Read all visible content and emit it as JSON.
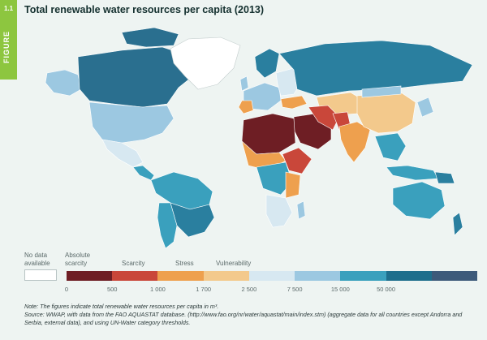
{
  "figure": {
    "number": "1.1",
    "label": "FIGURE"
  },
  "title": "Total renewable water resources per capita (2013)",
  "legend": {
    "no_data": "No data available",
    "categories": [
      {
        "label": "Absolute scarcity"
      },
      {
        "label": "Scarcity"
      },
      {
        "label": "Stress"
      },
      {
        "label": "Vulnerability"
      }
    ],
    "ticks": [
      "0",
      "500",
      "1 000",
      "1 700",
      "2 500",
      "7 500",
      "15 000",
      "50 000"
    ],
    "colors": [
      "#6e1e24",
      "#c9473a",
      "#eea04e",
      "#f3c98c",
      "#d7e8f1",
      "#9cc8e1",
      "#3aa0bd",
      "#1e6e8c",
      "#3d5a7a"
    ]
  },
  "note": "Note: The figures indicate total renewable water resources per capita in m³.",
  "source": "Source: WWAP, with data from the FAO AQUASTAT database. (http://www.fao.org/nr/water/aquastat/main/index.stm) (aggregate data for all countries except Andorra and Serbia, external data), and using UN-Water category thresholds."
}
